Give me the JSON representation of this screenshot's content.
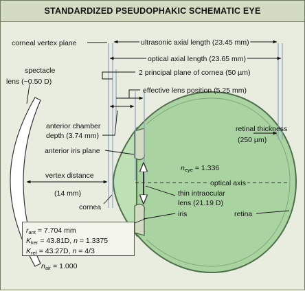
{
  "title": "STANDARDIZED PSEUDOPHAKIC SCHEMATIC EYE",
  "colors": {
    "background": "#e9ede0",
    "title_bar": "#d3dcc3",
    "eye_fill": "#a9d3a1",
    "eye_stroke": "#4f6f4a",
    "lens_fill": "#ffffff",
    "guide_lines": "#8fa3c4",
    "box_fill": "#f3f5ec"
  },
  "labels": {
    "corneal_vertex_plane": "corneal vertex plane",
    "ultrasonic_axial_length": "ultrasonic axial length (23.45 mm)",
    "optical_axial_length": "optical axial length (23.65 mm)",
    "principal_plane": "2 principal plane of cornea (50 µm)",
    "effective_lens_position": "effective lens position (5.25 mm)",
    "spectacle_lens_line1": "spectacle",
    "spectacle_lens_line2": "lens (−0.50 D)",
    "anterior_chamber_line1": "anterior chamber",
    "anterior_chamber_line2": "depth (3.74 mm)",
    "retinal_thickness_line1": "retinal thickness",
    "retinal_thickness_line2": "(250 µm)",
    "anterior_iris_plane": "anterior iris plane",
    "n_eye_symbol": "n",
    "n_eye_sub": "eye",
    "n_eye_value": " = 1.336",
    "vertex_distance_line1": "vertex distance",
    "vertex_distance_line2": "(14 mm)",
    "optical_axis": "optical axis",
    "iol_line1": "thin intraocular",
    "iol_line2": "lens (21.19 D)",
    "iris": "iris",
    "retina": "retina",
    "cornea": "cornea"
  },
  "parameters": {
    "r_symbol": "r",
    "r_sub": "ant",
    "r_value": " = 7.704 mm",
    "kker_symbol": "K",
    "kker_sub": "ker",
    "kker_value": " = 43.81D, ",
    "kker_n_symbol": "n",
    "kker_n_value": " = 1.3375",
    "kref_symbol": "K",
    "kref_sub": "ref",
    "kref_value": " = 43.27D, ",
    "kref_n_symbol": "n",
    "kref_n_value": " = 4/3"
  },
  "air_index": {
    "symbol": "n",
    "sub": "air",
    "value": " = 1.000"
  }
}
